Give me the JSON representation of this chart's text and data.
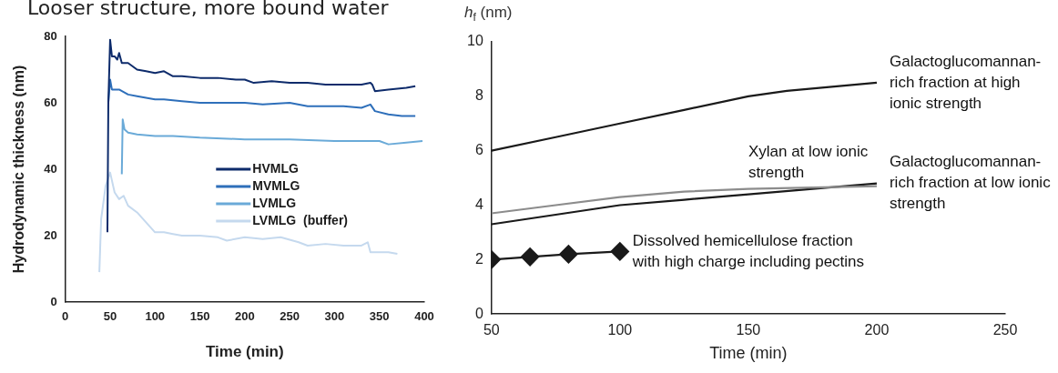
{
  "chart_data": [
    {
      "type": "line",
      "title": "Looser structure, more bound water",
      "xlabel": "Time (min)",
      "ylabel": "Hydrodynamic thickness (nm)",
      "xlim": [
        0,
        400
      ],
      "xticks": [
        0,
        50,
        100,
        150,
        200,
        250,
        300,
        350,
        400
      ],
      "ylim": [
        0,
        80
      ],
      "yticks": [
        0,
        20,
        40,
        60,
        80
      ],
      "grid": false,
      "legend": "center",
      "marker": "none",
      "series": [
        {
          "name": "HVMLG",
          "color": "#0d2b6b",
          "x": [
            47,
            48,
            50,
            52,
            55,
            58,
            60,
            63,
            70,
            80,
            90,
            100,
            110,
            120,
            130,
            150,
            170,
            190,
            200,
            210,
            230,
            250,
            270,
            290,
            310,
            330,
            340,
            342,
            345,
            360,
            380,
            390
          ],
          "values": [
            21,
            60,
            79,
            74,
            74,
            73,
            75,
            72,
            72,
            70,
            69.5,
            69,
            69.5,
            68,
            68,
            67.5,
            67.5,
            67,
            67,
            66,
            66.5,
            66,
            66,
            65.5,
            65.5,
            65.5,
            66,
            65.5,
            63.5,
            64,
            64.5,
            65
          ]
        },
        {
          "name": "MVMLG",
          "color": "#2e6fba",
          "x": [
            48,
            50,
            52,
            60,
            70,
            80,
            90,
            100,
            110,
            130,
            150,
            170,
            190,
            200,
            220,
            250,
            270,
            290,
            310,
            330,
            340,
            345,
            360,
            375,
            390
          ],
          "values": [
            60,
            67,
            64,
            64,
            62.5,
            62,
            61.5,
            61,
            61,
            60.5,
            60,
            60,
            60,
            60,
            59.5,
            60,
            59,
            59,
            59,
            58.5,
            59.5,
            57.5,
            56.5,
            56,
            56
          ]
        },
        {
          "name": "LVMLG",
          "color": "#6aaad8",
          "x": [
            63,
            64,
            66,
            70,
            80,
            100,
            120,
            150,
            200,
            250,
            300,
            350,
            360,
            380,
            398
          ],
          "values": [
            38.5,
            55,
            52,
            51,
            50.5,
            50,
            50,
            49.5,
            49,
            49,
            48.5,
            48.5,
            47.5,
            48,
            48.5
          ]
        },
        {
          "name": "LVMLG  (buffer)",
          "color": "#c5d9ee",
          "x": [
            38,
            40,
            45,
            50,
            55,
            60,
            65,
            70,
            80,
            90,
            100,
            110,
            120,
            130,
            150,
            170,
            180,
            200,
            220,
            240,
            260,
            270,
            290,
            310,
            330,
            337,
            340,
            350,
            360,
            370
          ],
          "values": [
            9,
            25,
            35,
            39,
            33,
            31,
            32,
            29,
            27,
            24,
            21,
            21,
            20.5,
            20,
            20,
            19.5,
            18.5,
            19.5,
            19,
            19.5,
            18,
            17,
            17.5,
            17,
            17,
            18,
            15,
            15,
            15,
            14.5
          ]
        }
      ]
    },
    {
      "type": "line",
      "xlabel": "Time (min)",
      "ylabel": "h$_{f}$ (nm)",
      "xlim": [
        50,
        250
      ],
      "xticks": [
        50,
        100,
        150,
        200,
        250
      ],
      "ylim": [
        0,
        10
      ],
      "yticks": [
        0,
        2,
        4,
        6,
        8,
        10
      ],
      "grid": false,
      "legend": false,
      "series": [
        {
          "name": "Galactoglucomannan-rich fraction at high ionic strength",
          "color": "#1a1a1a",
          "marker": "none",
          "x": [
            50,
            75,
            100,
            125,
            150,
            165,
            200
          ],
          "values": [
            6,
            6.5,
            7,
            7.5,
            8,
            8.2,
            8.5
          ]
        },
        {
          "name": "Xylan at low ionic strength",
          "color": "#8c8c8c",
          "marker": "none",
          "x": [
            50,
            75,
            100,
            125,
            150,
            200
          ],
          "values": [
            3.7,
            4.0,
            4.3,
            4.5,
            4.6,
            4.7
          ]
        },
        {
          "name": "Galactoglucomannan-rich fraction at low ionic strength",
          "color": "#1a1a1a",
          "marker": "none",
          "x": [
            50,
            75,
            100,
            125,
            150,
            200
          ],
          "values": [
            3.3,
            3.65,
            4.0,
            4.2,
            4.4,
            4.8
          ]
        },
        {
          "name": "Dissolved hemicellulose fraction with high charge including pectins",
          "color": "#1a1a1a",
          "marker": "diamond",
          "x": [
            50,
            65,
            80,
            100
          ],
          "values": [
            2.0,
            2.1,
            2.2,
            2.3
          ]
        }
      ]
    }
  ]
}
